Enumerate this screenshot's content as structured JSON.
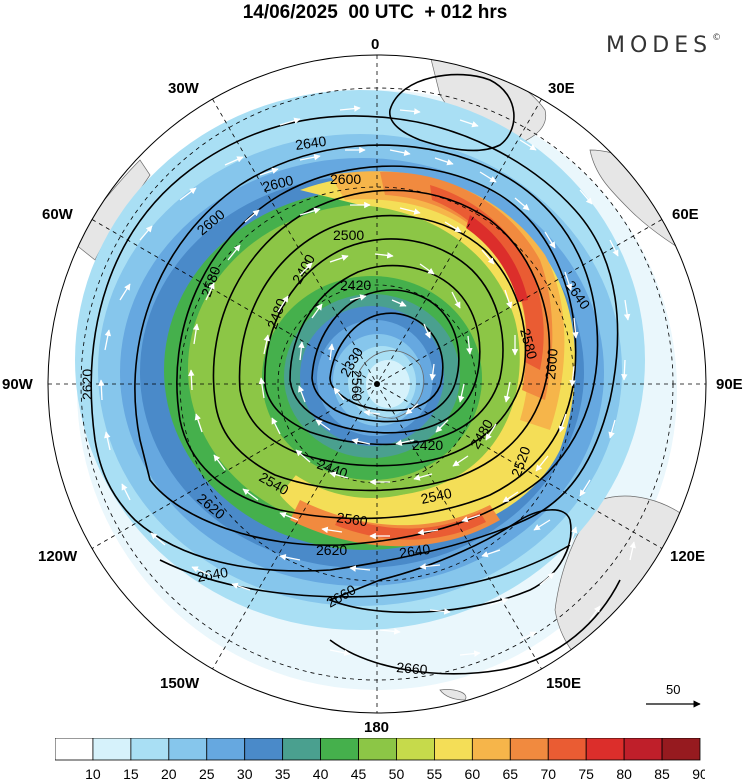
{
  "header": {
    "title": "14/06/2025  00 UTC  + 012 hrs",
    "brand": "MODES",
    "brand_mark": "©"
  },
  "map": {
    "projection": "south-polar stereographic",
    "longitude_labels": [
      {
        "id": "lon-0",
        "text": "0"
      },
      {
        "id": "lon-30e",
        "text": "30E"
      },
      {
        "id": "lon-60e",
        "text": "60E"
      },
      {
        "id": "lon-90e",
        "text": "90E"
      },
      {
        "id": "lon-120e",
        "text": "120E"
      },
      {
        "id": "lon-150e",
        "text": "150E"
      },
      {
        "id": "lon-180",
        "text": "180"
      },
      {
        "id": "lon-150w",
        "text": "150W"
      },
      {
        "id": "lon-120w",
        "text": "120W"
      },
      {
        "id": "lon-90w",
        "text": "90W"
      },
      {
        "id": "lon-60w",
        "text": "60W"
      },
      {
        "id": "lon-30w",
        "text": "30W"
      }
    ],
    "contour_labels": [
      "2640",
      "2600",
      "2600",
      "2600",
      "2500",
      "2420",
      "2330",
      "2580",
      "2480",
      "2400",
      "2580",
      "2600",
      "2560",
      "2520",
      "2640",
      "2480",
      "2420",
      "2440",
      "2540",
      "2540",
      "2560",
      "2620",
      "2640",
      "2620",
      "2660",
      "2640",
      "2660",
      "2620"
    ],
    "vector_reference": {
      "value": "50"
    },
    "colors": {
      "land": "#e6e6e6",
      "coast": "#6b6b6b",
      "contour": "#000000",
      "wind_arrow": "#ffffff"
    }
  },
  "colorbar": {
    "labels": [
      "10",
      "15",
      "20",
      "25",
      "30",
      "35",
      "40",
      "45",
      "50",
      "55",
      "60",
      "65",
      "70",
      "75",
      "80",
      "85",
      "90"
    ],
    "colors": [
      "#ffffff",
      "#d6f2fb",
      "#a9dff4",
      "#86c6ec",
      "#66a8e0",
      "#4a8ac9",
      "#4aa08f",
      "#45b04c",
      "#8cc646",
      "#c6da4b",
      "#f4de57",
      "#f6b54a",
      "#f18a3f",
      "#ea5c33",
      "#dc2e2b",
      "#bf1f2a",
      "#961a1f"
    ]
  }
}
